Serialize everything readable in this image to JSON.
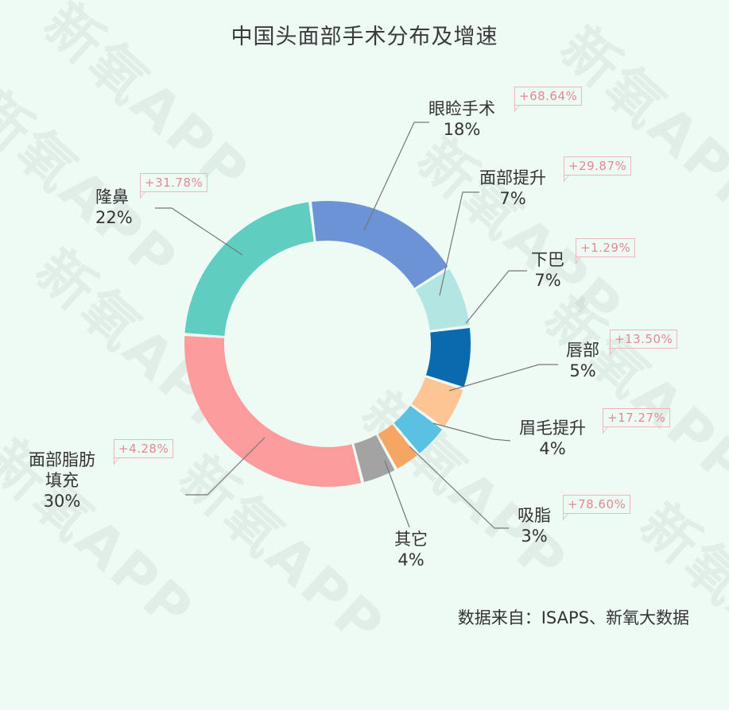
{
  "title": "中国头面部手术分布及增速",
  "source": "数据来自：ISAPS、新氧大数据",
  "watermark": "新氧APP",
  "chart_data": {
    "type": "pie",
    "variant": "donut",
    "title": "中国头面部手术分布及增速",
    "categories": [
      "眼睑手术",
      "面部提升",
      "下巴",
      "唇部",
      "眉毛提升",
      "吸脂",
      "其它",
      "面部脂肪填充",
      "隆鼻"
    ],
    "values": [
      18,
      7,
      7,
      5,
      4,
      3,
      4,
      30,
      22
    ],
    "unit": "%",
    "growth": [
      "+68.64%",
      "+29.87%",
      "+1.29%",
      "+13.50%",
      "+17.27%",
      "+78.60%",
      null,
      "+4.28%",
      "+31.78%"
    ],
    "colors": [
      "#6b93d6",
      "#b3e6e2",
      "#0a6aad",
      "#fdc494",
      "#5bc1e2",
      "#f6a663",
      "#a3a3a3",
      "#fd9c9c",
      "#5fcdc0"
    ],
    "source": "数据来自：ISAPS、新氧大数据",
    "legend_position": "none (callout labels)"
  },
  "segments": [
    {
      "name": "眼睑手术",
      "pct": "18%",
      "growth": "+68.64%"
    },
    {
      "name": "面部提升",
      "pct": "7%",
      "growth": "+29.87%"
    },
    {
      "name": "下巴",
      "pct": "7%",
      "growth": "+1.29%"
    },
    {
      "name": "唇部",
      "pct": "5%",
      "growth": "+13.50%"
    },
    {
      "name": "眉毛提升",
      "pct": "4%",
      "growth": "+17.27%"
    },
    {
      "name": "吸脂",
      "pct": "3%",
      "growth": "+78.60%"
    },
    {
      "name": "其它",
      "pct": "4%"
    },
    {
      "name": "面部脂肪",
      "name2": "填充",
      "pct": "30%",
      "growth": "+4.28%"
    },
    {
      "name": "隆鼻",
      "pct": "22%",
      "growth": "+31.78%"
    }
  ]
}
